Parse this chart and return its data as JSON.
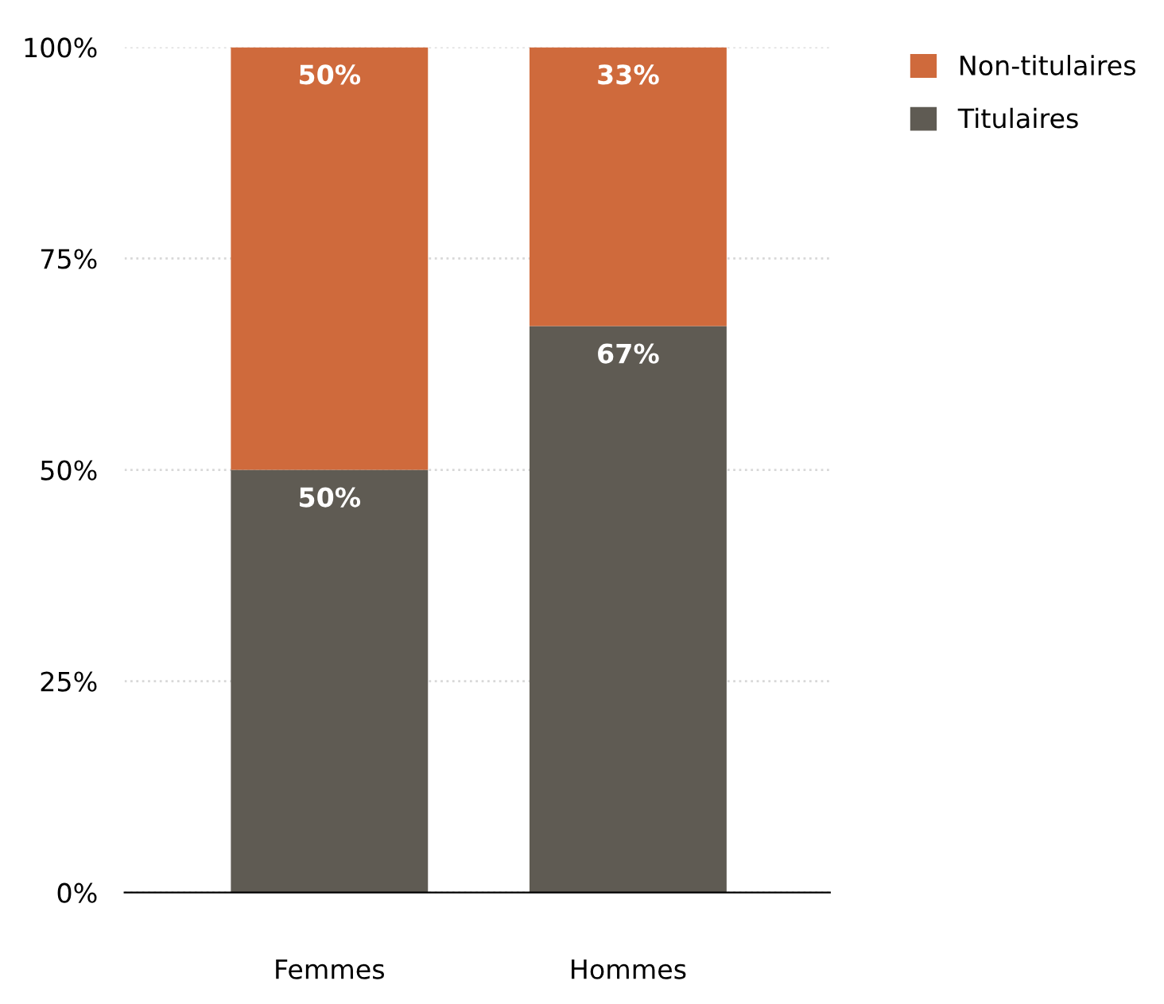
{
  "chart_data": {
    "type": "bar",
    "stacked": true,
    "categories": [
      "Femmes",
      "Hommes"
    ],
    "series": [
      {
        "name": "Titulaires",
        "color": "#5f5b53",
        "values": [
          50,
          67
        ],
        "value_labels": [
          "50%",
          "67%"
        ]
      },
      {
        "name": "Non-titulaires",
        "color": "#cf6a3c",
        "values": [
          50,
          33
        ],
        "value_labels": [
          "50%",
          "33%"
        ]
      }
    ],
    "ylim": [
      0,
      100
    ],
    "yticks": [
      {
        "value": 0,
        "label": "0%"
      },
      {
        "value": 25,
        "label": "25%"
      },
      {
        "value": 50,
        "label": "50%"
      },
      {
        "value": 75,
        "label": "75%"
      },
      {
        "value": 100,
        "label": "100%"
      }
    ],
    "grid": "y",
    "legend": "top right"
  }
}
